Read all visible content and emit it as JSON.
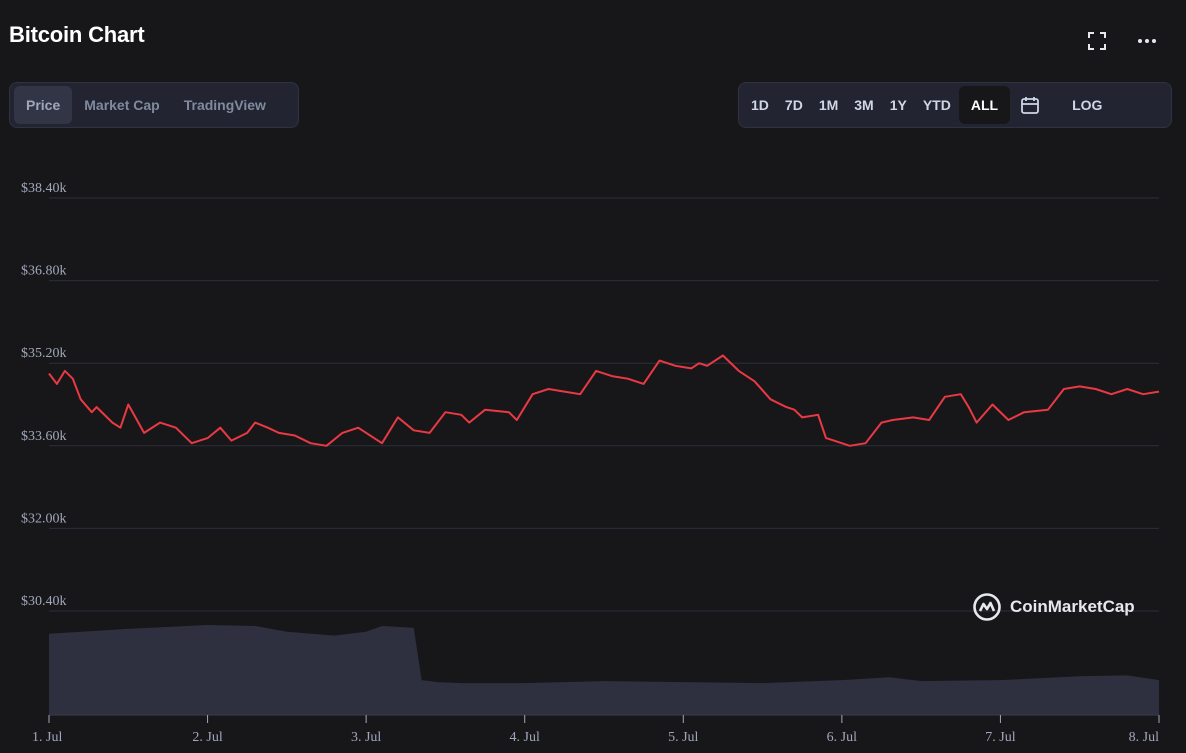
{
  "header": {
    "title": "Bitcoin Chart",
    "fullscreen_icon": "fullscreen-icon",
    "more_icon": "more-horizontal-icon"
  },
  "view_tabs": [
    {
      "label": "Price",
      "active": true
    },
    {
      "label": "Market Cap",
      "active": false
    },
    {
      "label": "TradingView",
      "active": false
    }
  ],
  "range_tabs": [
    {
      "label": "1D",
      "active": false
    },
    {
      "label": "7D",
      "active": false
    },
    {
      "label": "1M",
      "active": false
    },
    {
      "label": "3M",
      "active": false
    },
    {
      "label": "1Y",
      "active": false
    },
    {
      "label": "YTD",
      "active": false
    },
    {
      "label": "ALL",
      "active": true
    }
  ],
  "calendar_icon": "calendar-icon",
  "log_label": "LOG",
  "watermark": "CoinMarketCap",
  "colors": {
    "price_line": "#ea3943",
    "volume": "#2f3241",
    "grid": "#2b2e3a",
    "background": "#17171a"
  },
  "chart_data": {
    "type": "line",
    "title": "Bitcoin Chart",
    "xlabel": "",
    "ylabel": "",
    "x_ticks": [
      "1. Jul",
      "2. Jul",
      "3. Jul",
      "4. Jul",
      "5. Jul",
      "6. Jul",
      "7. Jul",
      "8. Jul"
    ],
    "y_ticks": [
      "$30.40k",
      "$32.00k",
      "$33.60k",
      "$35.20k",
      "$36.80k",
      "$38.40k"
    ],
    "y_tick_values": [
      30400,
      32000,
      33600,
      35200,
      36800,
      38400
    ],
    "ylim": [
      30400,
      38400
    ],
    "xlim": [
      0,
      7
    ],
    "grid": true,
    "series": [
      {
        "x_days": [
          0,
          0.05,
          0.1,
          0.15,
          0.2,
          0.27,
          0.3,
          0.4,
          0.45,
          0.5,
          0.6,
          0.7,
          0.8,
          0.9,
          1.0,
          1.08,
          1.15,
          1.25,
          1.3,
          1.38,
          1.45,
          1.55,
          1.65,
          1.75,
          1.85,
          1.95,
          2.05,
          2.1,
          2.2,
          2.3,
          2.4,
          2.5,
          2.6,
          2.65,
          2.75,
          2.9,
          2.95,
          3.05,
          3.15,
          3.25,
          3.35,
          3.45,
          3.55,
          3.65,
          3.75,
          3.85,
          3.95,
          4.05,
          4.1,
          4.15,
          4.25,
          4.35,
          4.45,
          4.55,
          4.65,
          4.7,
          4.75,
          4.85,
          4.9,
          4.95,
          5.05,
          5.15,
          5.25,
          5.32,
          5.45,
          5.55,
          5.65,
          5.75,
          5.8,
          5.85,
          5.95,
          6.05,
          6.15,
          6.3,
          6.4,
          6.5,
          6.6,
          6.7,
          6.8,
          6.9,
          7.0
        ],
        "values": [
          35000,
          34800,
          35050,
          34900,
          34500,
          34250,
          34350,
          34050,
          33950,
          34400,
          33850,
          34050,
          33950,
          33650,
          33750,
          33950,
          33700,
          33850,
          34050,
          33950,
          33850,
          33800,
          33650,
          33600,
          33850,
          33950,
          33750,
          33650,
          34150,
          33900,
          33850,
          34250,
          34200,
          34050,
          34300,
          34250,
          34100,
          34600,
          34700,
          34650,
          34600,
          35050,
          34950,
          34900,
          34800,
          35250,
          35150,
          35100,
          35200,
          35150,
          35350,
          35050,
          34850,
          34500,
          34350,
          34300,
          34150,
          34200,
          33750,
          33700,
          33600,
          33650,
          34050,
          34100,
          34150,
          34100,
          34550,
          34600,
          34350,
          34050,
          34400,
          34100,
          34250,
          34300,
          34700,
          34750,
          34700,
          34600,
          34700,
          34600,
          34650
        ]
      }
    ],
    "volume_series": {
      "x_days": [
        0,
        0.5,
        1.0,
        1.3,
        1.5,
        1.8,
        2.0,
        2.1,
        2.2,
        2.3,
        2.35,
        2.45,
        2.6,
        3.0,
        3.5,
        4.0,
        4.5,
        5.0,
        5.3,
        5.5,
        6.0,
        6.5,
        6.8,
        7.0
      ],
      "values": [
        8.4,
        8.9,
        9.3,
        9.2,
        8.6,
        8.2,
        8.6,
        9.2,
        9.1,
        9.0,
        3.6,
        3.4,
        3.3,
        3.3,
        3.5,
        3.4,
        3.3,
        3.6,
        3.9,
        3.5,
        3.6,
        4.0,
        4.1,
        3.6
      ]
    }
  }
}
